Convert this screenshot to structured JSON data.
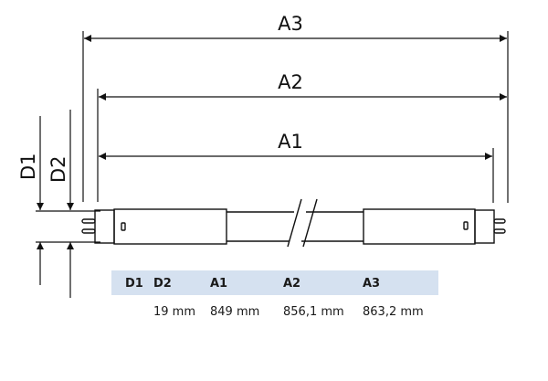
{
  "dimension_labels": {
    "a3": "A3",
    "a2": "A2",
    "a1": "A1",
    "d1": "D1",
    "d2": "D2"
  },
  "table": {
    "header_color": "#d5e1f0",
    "headers": [
      "D1",
      "D2",
      "A1",
      "A2",
      "A3"
    ],
    "values": [
      "",
      "19 mm",
      "849 mm",
      "856,1 mm",
      "863,2 mm"
    ]
  }
}
